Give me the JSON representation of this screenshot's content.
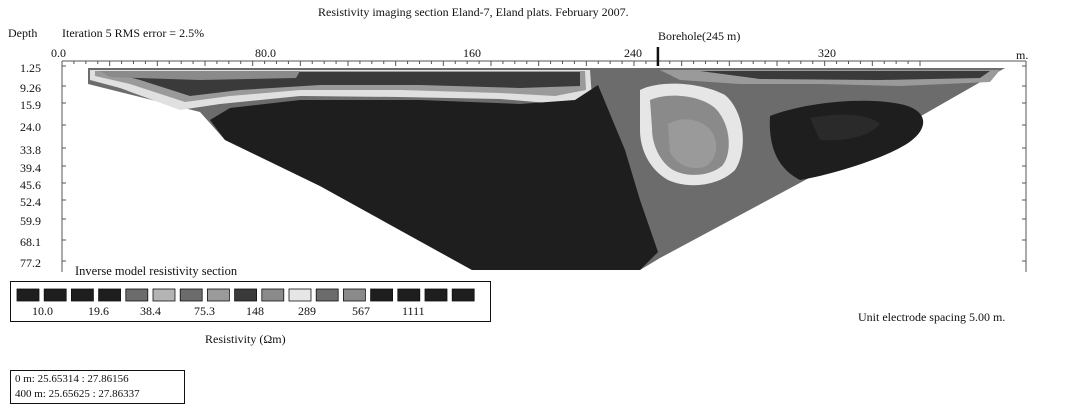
{
  "title": "Resistivity imaging section Eland-7, Eland plats. February 2007.",
  "depth_label": "Depth",
  "iteration_label": "Iteration 5 RMS error = 2.5%",
  "borehole_label": "Borehole(245 m)",
  "x_unit": "m.",
  "x_ticks": [
    "0.0",
    "80.0",
    "160",
    "240",
    "320"
  ],
  "x_tick_values": [
    0,
    80,
    160,
    240,
    320
  ],
  "borehole_position": 245,
  "depth_ticks": [
    "1.25",
    "9.26",
    "15.9",
    "24.0",
    "33.8",
    "39.4",
    "45.6",
    "52.4",
    "59.9",
    "68.1",
    "77.2"
  ],
  "section_label": "Inverse model resistivity section",
  "legend": {
    "swatch_colors": [
      "#1e1e1e",
      "#1e1e1e",
      "#1e1e1e",
      "#1e1e1e",
      "#6c6c6c",
      "#b4b4b4",
      "#6c6c6c",
      "#9a9a9a",
      "#3a3a3a",
      "#8a8a8a",
      "#e6e6e6",
      "#6c6c6c",
      "#8a8a8a",
      "#1e1e1e",
      "#1e1e1e",
      "#1e1e1e",
      "#1e1e1e"
    ],
    "labels": [
      "10.0",
      "19.6",
      "38.4",
      "75.3",
      "148",
      "289",
      "567",
      "1111"
    ]
  },
  "resistivity_label": "Resistivity (Ωm)",
  "electrode_spacing": "Unit electrode spacing 5.00 m.",
  "coordinates": [
    "0 m:   25.65314 : 27.86156",
    "400 m: 25.65625 : 27.86337"
  ]
}
